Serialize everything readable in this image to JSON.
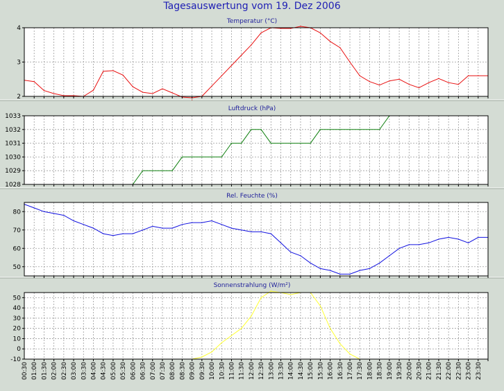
{
  "page": {
    "title": "Tagesauswertung vom 19. Dez 2006"
  },
  "colors": {
    "background": "#d4dcd4",
    "plot": "#ffffff",
    "title": "#1e1eb4",
    "grid": "#9a9a9a"
  },
  "chart_data": [
    {
      "type": "line",
      "title": "Temperatur (°C)",
      "ylim": [
        2,
        4
      ],
      "yticks": [
        2,
        3,
        4
      ],
      "xlim": [
        0,
        47
      ],
      "grid": true,
      "series": [
        {
          "color": "#e81010",
          "x": [
            0,
            1,
            2,
            3,
            4,
            5,
            6,
            7,
            8,
            9,
            10,
            11,
            12,
            13,
            14,
            15,
            16,
            17,
            18,
            19,
            20,
            21,
            22,
            23,
            24,
            25,
            26,
            27,
            28,
            29,
            30,
            31,
            32,
            33,
            34,
            35,
            36,
            37,
            38,
            39,
            40,
            41,
            42,
            43,
            44,
            45,
            46,
            47
          ],
          "values": [
            2.47,
            2.43,
            2.17,
            2.08,
            2.02,
            2.02,
            2.0,
            2.18,
            2.73,
            2.75,
            2.62,
            2.28,
            2.12,
            2.08,
            2.22,
            2.1,
            1.98,
            1.9,
            2.0,
            2.3,
            2.6,
            2.9,
            3.2,
            3.5,
            3.85,
            4.0,
            3.98,
            3.98,
            4.05,
            4.0,
            3.85,
            3.6,
            3.42,
            3.0,
            2.6,
            2.43,
            2.33,
            2.45,
            2.5,
            2.35,
            2.25,
            2.4,
            2.52,
            2.4,
            2.35,
            2.6,
            2.6,
            2.6
          ]
        }
      ]
    },
    {
      "type": "line",
      "title": "Luftdruck (hPa)",
      "ylim": [
        1028,
        1033
      ],
      "yticks": [
        1028,
        1029,
        1030,
        1031,
        1032,
        1033
      ],
      "xlim": [
        0,
        47
      ],
      "grid": true,
      "series": [
        {
          "color": "#108010",
          "x": [
            11,
            12,
            13,
            14,
            15,
            16,
            17,
            18,
            19,
            20,
            21,
            22,
            23,
            24,
            25,
            26,
            27,
            28,
            29,
            30,
            31,
            32,
            33,
            34,
            35,
            36,
            37,
            38
          ],
          "values": [
            1028,
            1029,
            1029,
            1029,
            1029,
            1030,
            1030,
            1030,
            1030,
            1030,
            1031,
            1031,
            1032,
            1032,
            1031,
            1031,
            1031,
            1031,
            1031,
            1032,
            1032,
            1032,
            1032,
            1032,
            1032,
            1032,
            1033,
            1033
          ]
        }
      ]
    },
    {
      "type": "line",
      "title": "Rel. Feuchte (%)",
      "ylim": [
        45,
        85
      ],
      "yticks": [
        50,
        60,
        70,
        80
      ],
      "xlim": [
        0,
        47
      ],
      "grid": true,
      "series": [
        {
          "color": "#1010e0",
          "x": [
            0,
            1,
            2,
            3,
            4,
            5,
            6,
            7,
            8,
            9,
            10,
            11,
            12,
            13,
            14,
            15,
            16,
            17,
            18,
            19,
            20,
            21,
            22,
            23,
            24,
            25,
            26,
            27,
            28,
            29,
            30,
            31,
            32,
            33,
            34,
            35,
            36,
            37,
            38,
            39,
            40,
            41,
            42,
            43,
            44,
            45,
            46,
            47
          ],
          "values": [
            84,
            82,
            80,
            79,
            78,
            75,
            73,
            71,
            68,
            67,
            68,
            68,
            70,
            72,
            71,
            71,
            73,
            74,
            74,
            75,
            73,
            71,
            70,
            69,
            69,
            68,
            63,
            58,
            56,
            52,
            49,
            48,
            46,
            46,
            48,
            49,
            52,
            56,
            60,
            62,
            62,
            63,
            65,
            66,
            65,
            63,
            66,
            66
          ]
        }
      ]
    },
    {
      "type": "line",
      "title": "Sonnenstrahlung (W/m²)",
      "ylim": [
        -10,
        55
      ],
      "yticks": [
        -10,
        0,
        10,
        20,
        30,
        40,
        50
      ],
      "xlim": [
        0,
        47
      ],
      "grid": true,
      "x_tick_labels": [
        "00:30",
        "01:00",
        "01:30",
        "02:00",
        "02:30",
        "03:00",
        "03:30",
        "04:00",
        "04:30",
        "05:00",
        "05:30",
        "06:00",
        "06:30",
        "07:00",
        "07:30",
        "08:00",
        "08:30",
        "09:00",
        "09:30",
        "10:00",
        "10:30",
        "11:00",
        "11:30",
        "12:00",
        "12:30",
        "13:00",
        "13:30",
        "14:00",
        "14:30",
        "15:00",
        "15:30",
        "16:00",
        "16:30",
        "17:00",
        "17:30",
        "18:00",
        "18:30",
        "19:00",
        "19:30",
        "20:00",
        "20:30",
        "21:00",
        "21:30",
        "22:00",
        "22:30",
        "23:00",
        "23:30"
      ],
      "series": [
        {
          "color": "#ffff30",
          "x": [
            17,
            18,
            19,
            20,
            21,
            22,
            23,
            24,
            25,
            26,
            27,
            28,
            29,
            30,
            31,
            32,
            33,
            34,
            35
          ],
          "values": [
            -10,
            -8,
            -3,
            6,
            13,
            20,
            32,
            50,
            57,
            55,
            53,
            55,
            55,
            42,
            20,
            5,
            -5,
            -10,
            -10
          ]
        }
      ]
    }
  ]
}
